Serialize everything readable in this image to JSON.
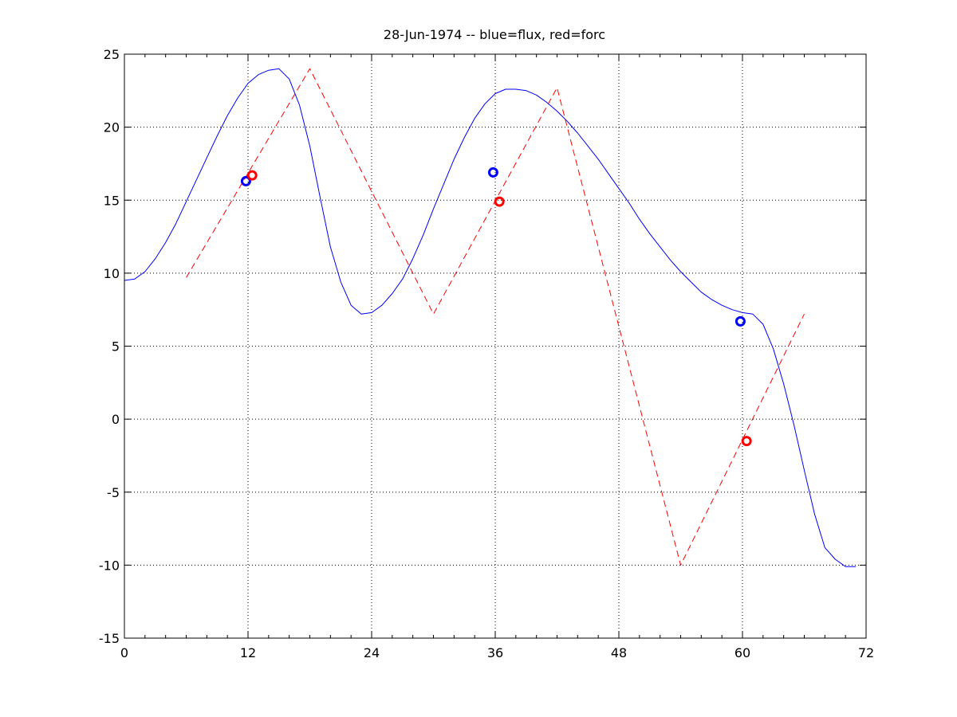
{
  "chart_data": {
    "type": "line",
    "title": "28-Jun-1974 -- blue=flux, red=forc",
    "xlabel": "",
    "ylabel": "",
    "xlim": [
      0,
      72
    ],
    "ylim": [
      -15,
      25
    ],
    "xticks": [
      0,
      12,
      24,
      36,
      48,
      60,
      72
    ],
    "yticks": [
      -15,
      -10,
      -5,
      0,
      5,
      10,
      15,
      20,
      25
    ],
    "xtick_labels": [
      "0",
      "12",
      "24",
      "36",
      "48",
      "60",
      "72"
    ],
    "ytick_labels": [
      "-15",
      "-10",
      "-5",
      "0",
      "5",
      "10",
      "15",
      "20",
      "25"
    ],
    "grid": true,
    "series": [
      {
        "color": "#0000ff",
        "style": "solid",
        "x": [
          0,
          1,
          2,
          3,
          4,
          5,
          6,
          7,
          8,
          9,
          10,
          11,
          12,
          13,
          14,
          15,
          16,
          17,
          18,
          19,
          20,
          21,
          22,
          23,
          24,
          25,
          26,
          27,
          28,
          29,
          30,
          31,
          32,
          33,
          34,
          35,
          36,
          37,
          38,
          39,
          40,
          41,
          42,
          43,
          44,
          45,
          46,
          47,
          48,
          49,
          50,
          51,
          52,
          53,
          54,
          55,
          56,
          57,
          58,
          59,
          60,
          61,
          62,
          63,
          64,
          65,
          66,
          67,
          68,
          69,
          70,
          71
        ],
        "y": [
          9.5,
          9.6,
          10.1,
          11.0,
          12.1,
          13.4,
          14.9,
          16.4,
          17.9,
          19.4,
          20.8,
          22.0,
          23.0,
          23.6,
          23.9,
          24.0,
          23.3,
          21.5,
          18.7,
          15.2,
          11.8,
          9.4,
          7.8,
          7.2,
          7.3,
          7.8,
          8.6,
          9.6,
          11.0,
          12.6,
          14.4,
          16.1,
          17.8,
          19.3,
          20.6,
          21.6,
          22.3,
          22.6,
          22.6,
          22.5,
          22.2,
          21.7,
          21.1,
          20.4,
          19.6,
          18.7,
          17.8,
          16.8,
          15.8,
          14.8,
          13.7,
          12.7,
          11.8,
          10.9,
          10.1,
          9.4,
          8.7,
          8.2,
          7.8,
          7.5,
          7.3,
          7.2,
          6.5,
          4.8,
          2.4,
          -0.4,
          -3.5,
          -6.5,
          -8.8,
          -9.6,
          -10.1,
          -10.1
        ]
      },
      {
        "color": "#ff0000",
        "style": "dashed",
        "x": [
          6,
          18,
          30,
          42,
          54,
          66
        ],
        "y": [
          9.7,
          24.0,
          7.2,
          22.7,
          -10.0,
          7.2
        ]
      }
    ],
    "markers": [
      {
        "color": "#0000ff",
        "x": 11.8,
        "y": 16.3
      },
      {
        "color": "#ff0000",
        "x": 12.4,
        "y": 16.7
      },
      {
        "color": "#0000ff",
        "x": 35.8,
        "y": 16.9
      },
      {
        "color": "#ff0000",
        "x": 36.4,
        "y": 14.9
      },
      {
        "color": "#0000ff",
        "x": 59.8,
        "y": 6.7
      },
      {
        "color": "#ff0000",
        "x": 60.4,
        "y": -1.5
      }
    ]
  }
}
